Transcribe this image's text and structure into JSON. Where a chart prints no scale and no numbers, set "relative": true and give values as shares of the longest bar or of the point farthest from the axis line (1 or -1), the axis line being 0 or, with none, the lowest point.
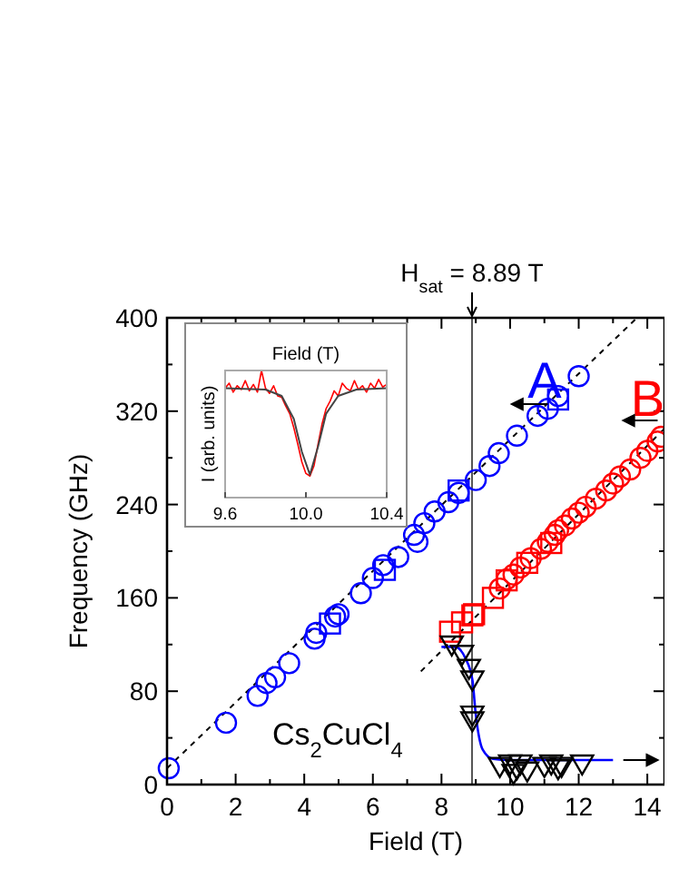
{
  "chart_data": [
    {
      "type": "scatter",
      "xlabel": "Field (T)",
      "ylabel": "Frequency (GHz)",
      "xlim": [
        0,
        14.5
      ],
      "ylim": [
        0,
        400
      ],
      "xticks": [
        0,
        {
          "value": 1,
          "label": null
        },
        2,
        {
          "value": 3,
          "label": null
        },
        4,
        {
          "value": 5,
          "label": null
        },
        6,
        {
          "value": 7,
          "label": null
        },
        8,
        {
          "value": 9,
          "label": null
        },
        10,
        {
          "value": 11,
          "label": null
        },
        12,
        {
          "value": 13,
          "label": null
        },
        14
      ],
      "yticks": [
        0,
        {
          "value": 40,
          "label": null
        },
        80,
        {
          "value": 120,
          "label": null
        },
        160,
        {
          "value": 200,
          "label": null
        },
        240,
        {
          "value": 280,
          "label": null
        },
        320,
        {
          "value": 360,
          "label": null
        },
        400
      ],
      "ref_lines": [
        {
          "axis": "x",
          "value": 8.89,
          "label": "H$_{sat}$ = 8.89 T",
          "color": "#555555"
        }
      ],
      "annotations": [
        "A",
        "B",
        "Cs$_{2}$CuCl$_{4}$"
      ],
      "series": [
        {
          "type": "line",
          "color": "#000000",
          "line_style": "dashed",
          "x": [
            0,
            13.7
          ],
          "values": [
            14,
            400
          ]
        },
        {
          "type": "line",
          "color": "#000000",
          "line_style": "dashed",
          "x": [
            7.4,
            14.5
          ],
          "values": [
            97,
            305
          ]
        },
        {
          "type": "line",
          "color": "#0000ff",
          "line_style": "solid",
          "x": [
            8.0,
            8.4,
            8.7,
            8.9,
            9.0,
            9.2,
            9.5,
            10,
            13
          ],
          "values": [
            118,
            118,
            108,
            90,
            60,
            30,
            22,
            21,
            21
          ]
        },
        {
          "color": "#0000ff",
          "marker": "circle",
          "x": [
            0.05,
            1.72,
            2.64,
            2.9,
            3.15,
            3.56,
            4.3,
            4.35,
            4.9,
            5.0,
            5.65,
            6.0,
            6.3,
            6.74,
            7.2,
            7.3,
            7.5,
            7.8,
            8.2,
            8.5,
            9.0,
            9.4,
            9.67,
            10.2,
            10.8,
            11.1,
            11.4,
            12.0
          ],
          "values": [
            14,
            53,
            76,
            87,
            92,
            104,
            125,
            130,
            144,
            146,
            164,
            177,
            188,
            195,
            214,
            208,
            224,
            234,
            242,
            250,
            261,
            273,
            284,
            299,
            316,
            322,
            333,
            350
          ]
        },
        {
          "color": "#0000ff",
          "marker": "square",
          "x": [
            4.75,
            6.35,
            8.5,
            11.4
          ],
          "values": [
            138,
            184,
            252,
            330
          ]
        },
        {
          "color": "#ff0000",
          "marker": "square",
          "x": [
            8.25,
            8.6,
            8.9,
            8.95,
            9.5,
            9.9,
            10.5,
            11.2
          ],
          "values": [
            131,
            139,
            145,
            146,
            160,
            175,
            190,
            207
          ]
        },
        {
          "color": "#ff0000",
          "marker": "circle",
          "x": [
            9.7,
            9.9,
            10.1,
            10.3,
            10.6,
            10.9,
            11.1,
            11.3,
            11.4,
            11.6,
            11.8,
            12.0,
            12.2,
            12.5,
            12.8,
            13.0,
            13.2,
            13.5,
            13.8,
            14.0,
            14.3,
            14.4
          ],
          "values": [
            168,
            176,
            180,
            186,
            194,
            202,
            208,
            214,
            218,
            222,
            228,
            233,
            238,
            245,
            252,
            258,
            264,
            270,
            280,
            286,
            294,
            298
          ]
        },
        {
          "color": "#000000",
          "marker": "triangle",
          "x": [
            8.3,
            8.6,
            8.8,
            8.9,
            8.9,
            8.9,
            9.7,
            10.0,
            10.1,
            10.2,
            10.3,
            10.5,
            11.0,
            11.2,
            11.4,
            11.5,
            12.1
          ],
          "values": [
            120,
            112,
            100,
            90,
            60,
            55,
            16,
            18,
            10,
            14,
            18,
            12,
            16,
            18,
            14,
            16,
            18
          ]
        }
      ]
    },
    {
      "type": "line",
      "xlabel": "Field (T)",
      "ylabel": "I (arb. units)",
      "relative": true,
      "xlim": [
        9.6,
        10.4
      ],
      "xticks": [
        9.6,
        {
          "value": 10,
          "label": "10.0"
        },
        10.4
      ],
      "series": [
        {
          "color": "#ff0000",
          "x": [
            9.6,
            9.62,
            9.64,
            9.66,
            9.68,
            9.7,
            9.72,
            9.74,
            9.76,
            9.78,
            9.8,
            9.82,
            9.84,
            9.86,
            9.88,
            9.9,
            9.92,
            9.94,
            9.96,
            9.98,
            10.0,
            10.02,
            10.04,
            10.06,
            10.08,
            10.1,
            10.12,
            10.14,
            10.16,
            10.18,
            10.2,
            10.22,
            10.24,
            10.26,
            10.28,
            10.3,
            10.32,
            10.34,
            10.36,
            10.38,
            10.4
          ],
          "values": [
            0.86,
            0.9,
            0.83,
            0.88,
            0.85,
            0.92,
            0.84,
            0.89,
            0.83,
            1.0,
            0.86,
            0.82,
            0.88,
            0.8,
            0.79,
            0.72,
            0.66,
            0.55,
            0.42,
            0.28,
            0.19,
            0.17,
            0.25,
            0.42,
            0.58,
            0.7,
            0.76,
            0.84,
            0.8,
            0.9,
            0.86,
            0.84,
            0.92,
            0.85,
            0.88,
            0.83,
            0.9,
            0.86,
            0.93,
            0.87,
            0.89
          ]
        },
        {
          "color": "#444444",
          "x": [
            9.6,
            9.8,
            9.88,
            9.94,
            9.98,
            10.02,
            10.06,
            10.1,
            10.16,
            10.25,
            10.4
          ],
          "values": [
            0.86,
            0.85,
            0.8,
            0.62,
            0.36,
            0.18,
            0.4,
            0.66,
            0.8,
            0.85,
            0.86
          ]
        }
      ]
    }
  ]
}
